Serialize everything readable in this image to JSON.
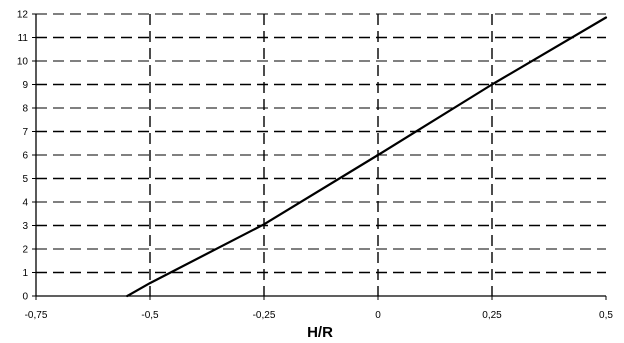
{
  "chart_data": {
    "type": "line",
    "title": "",
    "xlabel": "H/R",
    "ylabel": "",
    "xlim": [
      -0.75,
      0.5
    ],
    "ylim": [
      0,
      12
    ],
    "x_ticks": [
      -0.75,
      -0.5,
      -0.25,
      0,
      0.25,
      0.5
    ],
    "x_tick_labels": [
      "-0,75",
      "-0,5",
      "-0,25",
      "0",
      "0,25",
      "0,5"
    ],
    "y_ticks": [
      0,
      1,
      2,
      3,
      4,
      5,
      6,
      7,
      8,
      9,
      10,
      11,
      12
    ],
    "y_tick_labels": [
      "0",
      "1",
      "2",
      "3",
      "4",
      "5",
      "6",
      "7",
      "8",
      "9",
      "10",
      "11",
      "12"
    ],
    "grid": "dashed, both axes",
    "legend": "none",
    "series": [
      {
        "x": [
          -0.55,
          -0.5,
          -0.25,
          0,
          0.25,
          0.5
        ],
        "y": [
          0,
          0.55,
          3.05,
          6.0,
          9.0,
          11.85
        ]
      }
    ],
    "line_color": "#000000",
    "grid_color": "#000000"
  }
}
